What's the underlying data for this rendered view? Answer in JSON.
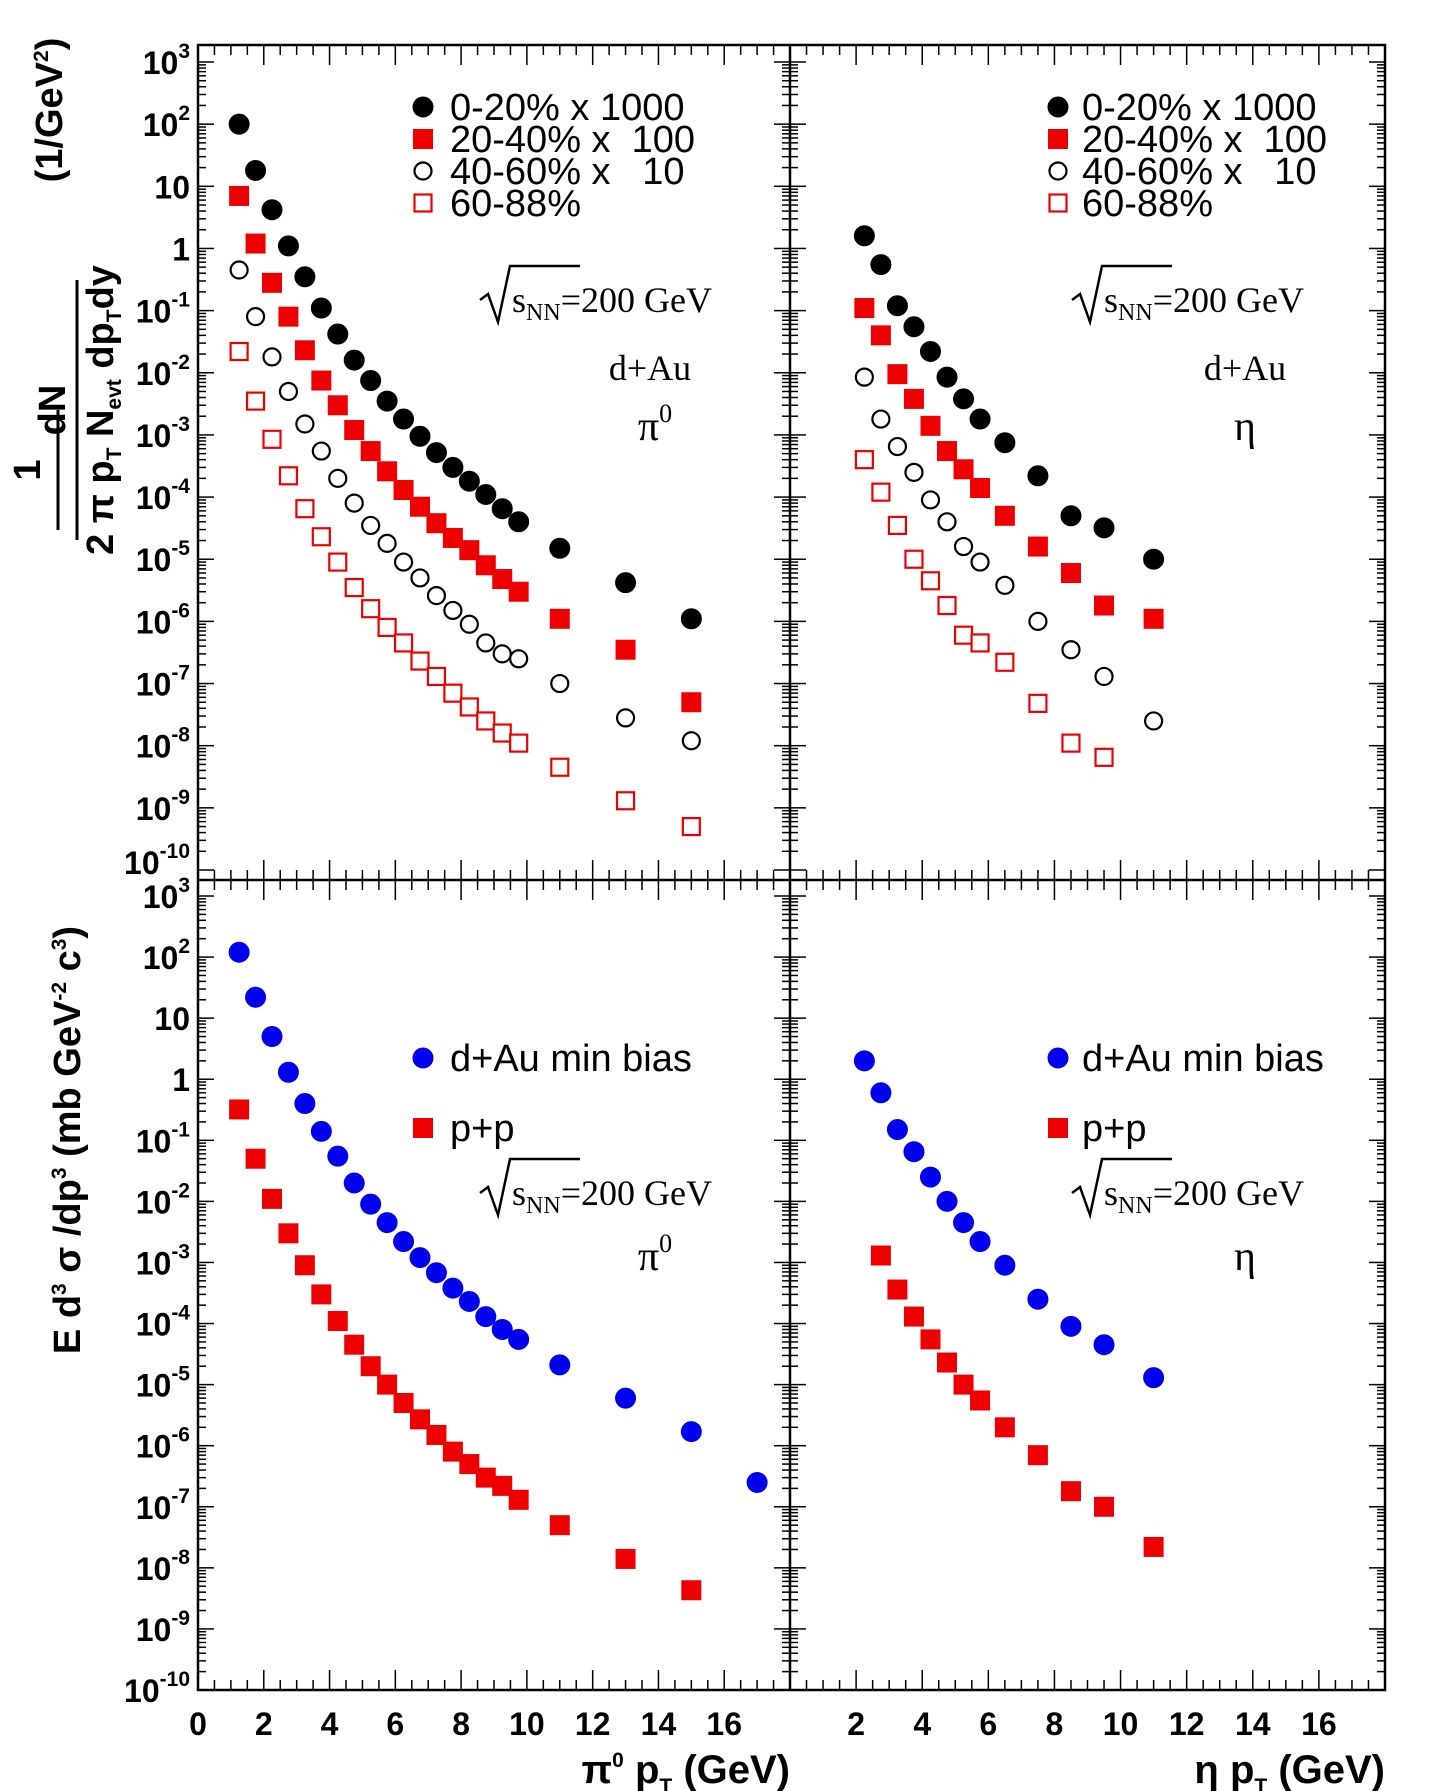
{
  "figure": {
    "collision": "d+Au",
    "sqrt_label_s": "s",
    "sqrt_label_sub": "NN",
    "sqrt_label_val": "=200 GeV",
    "y_title_top": {
      "num": "dN",
      "den_prefix": "2 π p",
      "den_sub1": "T",
      "den_mid": " N",
      "den_sub2": "evt",
      "den_suffix": " dp",
      "den_sub3": "T",
      "den_end": "dy",
      "one": "1",
      "units": "(1/GeV",
      "units_sup": "2",
      "units_close": ")"
    },
    "y_title_bottom": {
      "part1": "E d",
      "sup1": "3",
      "part2": " σ /dp",
      "sup2": "3",
      "part3": " (mb GeV",
      "sup3": "-2",
      "part4": " c",
      "sup4": "3",
      "part5": ")"
    },
    "x_title_left": {
      "pre": "π",
      "sup": "0",
      "mid": " p",
      "sub": "T",
      "post": " (GeV)"
    },
    "x_title_right": {
      "pre": "η p",
      "sub": "T",
      "post": " (GeV)"
    },
    "y_tick_labels": [
      {
        "exp": -10,
        "base": "10",
        "sup": "-10"
      },
      {
        "exp": -9,
        "base": "10",
        "sup": "-9"
      },
      {
        "exp": -8,
        "base": "10",
        "sup": "-8"
      },
      {
        "exp": -7,
        "base": "10",
        "sup": "-7"
      },
      {
        "exp": -6,
        "base": "10",
        "sup": "-6"
      },
      {
        "exp": -5,
        "base": "10",
        "sup": "-5"
      },
      {
        "exp": -4,
        "base": "10",
        "sup": "-4"
      },
      {
        "exp": -3,
        "base": "10",
        "sup": "-3"
      },
      {
        "exp": -2,
        "base": "10",
        "sup": "-2"
      },
      {
        "exp": -1,
        "base": "10",
        "sup": "-1"
      },
      {
        "exp": 0,
        "base": "1",
        "sup": ""
      },
      {
        "exp": 1,
        "base": "10",
        "sup": ""
      },
      {
        "exp": 2,
        "base": "10",
        "sup": "2"
      },
      {
        "exp": 3,
        "base": "10",
        "sup": "3"
      }
    ],
    "x_tick_labels_left": [
      "0",
      "2",
      "4",
      "6",
      "8",
      "10",
      "12",
      "14",
      "16"
    ],
    "x_tick_labels_right": [
      "2",
      "4",
      "6",
      "8",
      "10",
      "12",
      "14",
      "16"
    ]
  },
  "chart_data": [
    {
      "panel": "top-left",
      "type": "scatter",
      "particle": "π",
      "particle_sup": "0",
      "xlim": [
        0,
        18
      ],
      "ylim": [
        1e-10,
        1000
      ],
      "yscale": "log",
      "legend_position": "top-right",
      "series": [
        {
          "name": "0-20% x 1000",
          "marker": "filled-circle",
          "color": "#000000",
          "x": [
            1.25,
            1.75,
            2.25,
            2.75,
            3.25,
            3.75,
            4.25,
            4.75,
            5.25,
            5.75,
            6.25,
            6.75,
            7.25,
            7.75,
            8.25,
            8.75,
            9.25,
            9.75,
            11,
            13,
            15
          ],
          "y": [
            100,
            18,
            4.2,
            1.1,
            0.35,
            0.11,
            0.042,
            0.016,
            0.0075,
            0.0035,
            0.0018,
            0.00095,
            0.00052,
            0.0003,
            0.00018,
            0.00011,
            6.5e-05,
            4e-05,
            1.5e-05,
            4.2e-06,
            1.1e-06
          ]
        },
        {
          "name": "20-40% x  100",
          "marker": "filled-square",
          "color": "#ee0000",
          "x": [
            1.25,
            1.75,
            2.25,
            2.75,
            3.25,
            3.75,
            4.25,
            4.75,
            5.25,
            5.75,
            6.25,
            6.75,
            7.25,
            7.75,
            8.25,
            8.75,
            9.25,
            9.75,
            11,
            13,
            15
          ],
          "y": [
            7,
            1.2,
            0.28,
            0.08,
            0.023,
            0.0075,
            0.003,
            0.0012,
            0.00055,
            0.00026,
            0.00013,
            7e-05,
            3.8e-05,
            2.2e-05,
            1.4e-05,
            8e-06,
            4.8e-06,
            3e-06,
            1.1e-06,
            3.5e-07,
            5e-08
          ]
        },
        {
          "name": "40-60% x   10",
          "marker": "open-circle",
          "color": "#000000",
          "x": [
            1.25,
            1.75,
            2.25,
            2.75,
            3.25,
            3.75,
            4.25,
            4.75,
            5.25,
            5.75,
            6.25,
            6.75,
            7.25,
            7.75,
            8.25,
            8.75,
            9.25,
            9.75,
            11,
            13,
            15
          ],
          "y": [
            0.45,
            0.08,
            0.018,
            0.005,
            0.0015,
            0.00055,
            0.0002,
            8e-05,
            3.5e-05,
            1.8e-05,
            9e-06,
            5e-06,
            2.6e-06,
            1.5e-06,
            9e-07,
            4.5e-07,
            3e-07,
            2.5e-07,
            1e-07,
            2.8e-08,
            1.2e-08
          ]
        },
        {
          "name": "60-88%",
          "marker": "open-square",
          "color": "#ee0000",
          "x": [
            1.25,
            1.75,
            2.25,
            2.75,
            3.25,
            3.75,
            4.25,
            4.75,
            5.25,
            5.75,
            6.25,
            6.75,
            7.25,
            7.75,
            8.25,
            8.75,
            9.25,
            9.75,
            11,
            13,
            15
          ],
          "y": [
            0.022,
            0.0035,
            0.00085,
            0.00022,
            6.5e-05,
            2.3e-05,
            9e-06,
            3.5e-06,
            1.6e-06,
            8e-07,
            4.5e-07,
            2.3e-07,
            1.3e-07,
            7e-08,
            4.2e-08,
            2.5e-08,
            1.6e-08,
            1.1e-08,
            4.5e-09,
            1.3e-09,
            5e-10
          ]
        }
      ]
    },
    {
      "panel": "top-right",
      "type": "scatter",
      "particle": "η",
      "particle_sup": "",
      "xlim": [
        0,
        18
      ],
      "ylim": [
        1e-10,
        1000
      ],
      "yscale": "log",
      "legend_position": "top-right",
      "series": [
        {
          "name": "0-20% x 1000",
          "marker": "filled-circle",
          "color": "#000000",
          "x": [
            2.25,
            2.75,
            3.25,
            3.75,
            4.25,
            4.75,
            5.25,
            5.75,
            6.5,
            7.5,
            8.5,
            9.5,
            11
          ],
          "y": [
            1.6,
            0.55,
            0.12,
            0.055,
            0.022,
            0.0085,
            0.0038,
            0.0018,
            0.00075,
            0.00022,
            5e-05,
            3.2e-05,
            1e-05
          ]
        },
        {
          "name": "20-40% x  100",
          "marker": "filled-square",
          "color": "#ee0000",
          "x": [
            2.25,
            2.75,
            3.25,
            3.75,
            4.25,
            4.75,
            5.25,
            5.75,
            6.5,
            7.5,
            8.5,
            9.5,
            11
          ],
          "y": [
            0.11,
            0.04,
            0.0095,
            0.0038,
            0.0014,
            0.00055,
            0.00028,
            0.00014,
            5e-05,
            1.6e-05,
            6e-06,
            1.8e-06,
            1.1e-06
          ]
        },
        {
          "name": "40-60% x   10",
          "marker": "open-circle",
          "color": "#000000",
          "x": [
            2.25,
            2.75,
            3.25,
            3.75,
            4.25,
            4.75,
            5.25,
            5.75,
            6.5,
            7.5,
            8.5,
            9.5,
            11
          ],
          "y": [
            0.0085,
            0.0018,
            0.00065,
            0.00025,
            9e-05,
            4e-05,
            1.6e-05,
            9e-06,
            3.8e-06,
            1e-06,
            3.5e-07,
            1.3e-07,
            2.5e-08
          ]
        },
        {
          "name": "60-88%",
          "marker": "open-square",
          "color": "#ee0000",
          "x": [
            2.25,
            2.75,
            3.25,
            3.75,
            4.25,
            4.75,
            5.25,
            5.75,
            6.5,
            7.5,
            8.5,
            9.5
          ],
          "y": [
            0.0004,
            0.00012,
            3.5e-05,
            1e-05,
            4.5e-06,
            1.8e-06,
            6e-07,
            4.5e-07,
            2.2e-07,
            4.8e-08,
            1.1e-08,
            6.5e-09
          ]
        }
      ]
    },
    {
      "panel": "bottom-left",
      "type": "scatter",
      "particle": "π",
      "particle_sup": "0",
      "xlim": [
        0,
        18
      ],
      "ylim": [
        1e-10,
        1000
      ],
      "yscale": "log",
      "legend_position": "top-right",
      "series": [
        {
          "name": "d+Au min bias",
          "marker": "filled-circle",
          "color": "#0000ee",
          "x": [
            1.25,
            1.75,
            2.25,
            2.75,
            3.25,
            3.75,
            4.25,
            4.75,
            5.25,
            5.75,
            6.25,
            6.75,
            7.25,
            7.75,
            8.25,
            8.75,
            9.25,
            9.75,
            11,
            13,
            15,
            17
          ],
          "y": [
            120,
            22,
            5,
            1.3,
            0.4,
            0.14,
            0.055,
            0.02,
            0.009,
            0.0045,
            0.0022,
            0.0012,
            0.00068,
            0.00038,
            0.00023,
            0.00013,
            8e-05,
            5.5e-05,
            2.1e-05,
            6e-06,
            1.7e-06,
            2.5e-07
          ]
        },
        {
          "name": "p+p",
          "marker": "filled-square",
          "color": "#ee0000",
          "x": [
            1.25,
            1.75,
            2.25,
            2.75,
            3.25,
            3.75,
            4.25,
            4.75,
            5.25,
            5.75,
            6.25,
            6.75,
            7.25,
            7.75,
            8.25,
            8.75,
            9.25,
            9.75,
            11,
            13,
            15
          ],
          "y": [
            0.32,
            0.05,
            0.011,
            0.003,
            0.0009,
            0.0003,
            0.00011,
            4.5e-05,
            2e-05,
            1e-05,
            5e-06,
            2.7e-06,
            1.5e-06,
            8e-07,
            5e-07,
            3e-07,
            2.2e-07,
            1.3e-07,
            5e-08,
            1.4e-08,
            4.3e-09
          ]
        }
      ]
    },
    {
      "panel": "bottom-right",
      "type": "scatter",
      "particle": "η",
      "particle_sup": "",
      "xlim": [
        0,
        18
      ],
      "ylim": [
        1e-10,
        1000
      ],
      "yscale": "log",
      "legend_position": "top-right",
      "series": [
        {
          "name": "d+Au min bias",
          "marker": "filled-circle",
          "color": "#0000ee",
          "x": [
            2.25,
            2.75,
            3.25,
            3.75,
            4.25,
            4.75,
            5.25,
            5.75,
            6.5,
            7.5,
            8.5,
            9.5,
            11
          ],
          "y": [
            2,
            0.6,
            0.15,
            0.065,
            0.025,
            0.01,
            0.0045,
            0.0022,
            0.0009,
            0.00025,
            9e-05,
            4.5e-05,
            1.3e-05
          ]
        },
        {
          "name": "p+p",
          "marker": "filled-square",
          "color": "#ee0000",
          "x": [
            2.75,
            3.25,
            3.75,
            4.25,
            4.75,
            5.25,
            5.75,
            6.5,
            7.5,
            8.5,
            9.5,
            11
          ],
          "y": [
            0.0013,
            0.00036,
            0.00013,
            5.5e-05,
            2.3e-05,
            1e-05,
            5.5e-06,
            2e-06,
            7e-07,
            1.8e-07,
            1e-07,
            2.2e-08
          ]
        }
      ]
    }
  ]
}
